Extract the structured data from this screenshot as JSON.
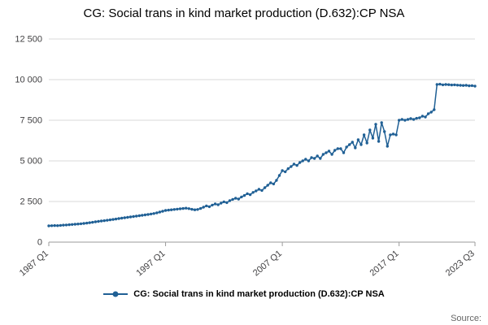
{
  "title": "CG: Social trans in kind market production (D.632):CP NSA",
  "source_label": "Source:",
  "legend": {
    "label": "CG: Social trans in kind market production (D.632):CP NSA"
  },
  "chart_data": {
    "type": "line",
    "title": "CG: Social trans in kind market production (D.632):CP NSA",
    "xlabel": "",
    "ylabel": "",
    "ylim": [
      0,
      12500
    ],
    "grid": true,
    "legend_position": "bottom",
    "frequency": "quarterly",
    "x_range": [
      "1987 Q1",
      "2023 Q3"
    ],
    "y_ticks": [
      {
        "value": 0,
        "label": "0"
      },
      {
        "value": 2500,
        "label": "2 500"
      },
      {
        "value": 5000,
        "label": "5 000"
      },
      {
        "value": 7500,
        "label": "7 500"
      },
      {
        "value": 10000,
        "label": "10 000"
      },
      {
        "value": 12500,
        "label": "12 500"
      }
    ],
    "x_ticks": [
      {
        "index": 0,
        "label": "1987 Q1"
      },
      {
        "index": 40,
        "label": "1997 Q1"
      },
      {
        "index": 80,
        "label": "2007 Q1"
      },
      {
        "index": 120,
        "label": "2017 Q1"
      },
      {
        "index": 146,
        "label": "2023 Q3"
      }
    ],
    "series": [
      {
        "name": "CG: Social trans in kind market production (D.632):CP NSA",
        "color": "#206095",
        "values": [
          1000,
          1010,
          1020,
          1015,
          1030,
          1045,
          1055,
          1070,
          1085,
          1100,
          1115,
          1130,
          1150,
          1170,
          1195,
          1220,
          1250,
          1275,
          1300,
          1320,
          1345,
          1370,
          1395,
          1420,
          1450,
          1475,
          1500,
          1525,
          1550,
          1575,
          1600,
          1625,
          1650,
          1675,
          1700,
          1730,
          1760,
          1800,
          1850,
          1900,
          1950,
          1970,
          1990,
          2010,
          2030,
          2050,
          2070,
          2090,
          2060,
          2020,
          1990,
          2010,
          2070,
          2150,
          2230,
          2180,
          2280,
          2350,
          2300,
          2400,
          2480,
          2430,
          2550,
          2630,
          2700,
          2650,
          2780,
          2870,
          2980,
          2920,
          3060,
          3150,
          3250,
          3180,
          3350,
          3500,
          3650,
          3580,
          3800,
          4100,
          4400,
          4330,
          4520,
          4650,
          4800,
          4720,
          4900,
          5000,
          5100,
          5000,
          5200,
          5150,
          5300,
          5150,
          5400,
          5500,
          5600,
          5400,
          5650,
          5750,
          5750,
          5500,
          5850,
          6000,
          6150,
          5800,
          6300,
          6000,
          6600,
          6100,
          6900,
          6400,
          7250,
          6200,
          7350,
          6800,
          5900,
          6600,
          6650,
          6600,
          7500,
          7550,
          7500,
          7550,
          7600,
          7550,
          7620,
          7650,
          7750,
          7700,
          7900,
          8000,
          8150,
          9700,
          9720,
          9680,
          9700,
          9690,
          9670,
          9680,
          9660,
          9650,
          9640,
          9650,
          9620,
          9630,
          9600
        ]
      }
    ]
  }
}
